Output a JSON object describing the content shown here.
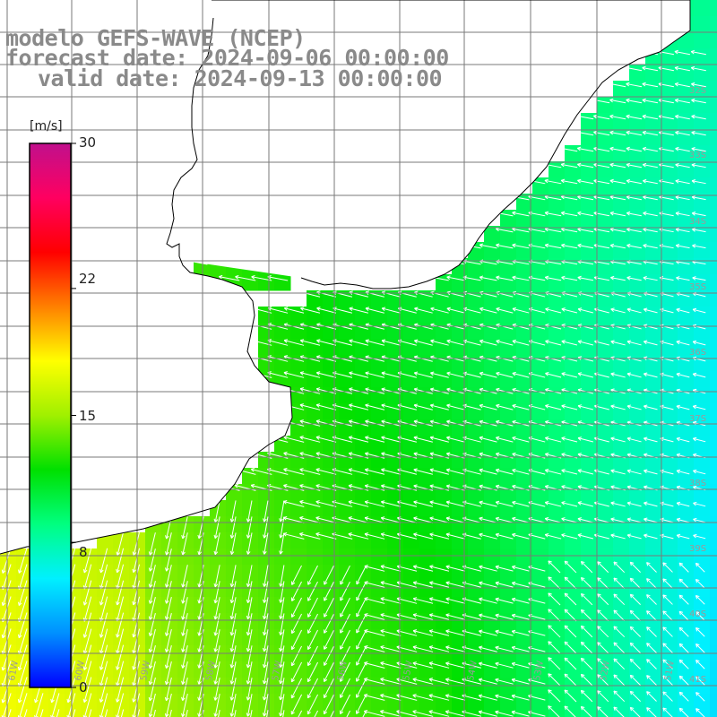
{
  "title": {
    "line1": "modelo GEFS-WAVE (NCEP)",
    "line2": "forecast date: 2024-09-06 00:00:00",
    "line3": "valid date: 2024-09-13 00:00:00"
  },
  "colorbar": {
    "unit": "[m/s]",
    "min": 0,
    "max": 30,
    "ticks": [
      "30",
      "22",
      "15",
      "8",
      "0"
    ],
    "tick_values": [
      30,
      22,
      15,
      8,
      0
    ],
    "colors": [
      "#0000ff",
      "#0090ff",
      "#00f0ff",
      "#00ff80",
      "#00e000",
      "#a0f000",
      "#ffff00",
      "#ff8000",
      "#ff0000",
      "#ff0060",
      "#c0108c"
    ]
  },
  "map": {
    "lat_labels": [
      "32S",
      "33S",
      "34S",
      "35S",
      "36S",
      "37S",
      "38S",
      "39S",
      "40S",
      "41S"
    ],
    "lon_labels": [
      "61W",
      "60W",
      "59W",
      "58W",
      "57W",
      "56W",
      "55W",
      "54W",
      "53W",
      "52W",
      "51W"
    ],
    "land_color": "#ffffff",
    "coast_color": "#000000",
    "grid_color": "#7a7a7a"
  },
  "field": {
    "description_free": true,
    "arrow_color": "#ffffff"
  }
}
